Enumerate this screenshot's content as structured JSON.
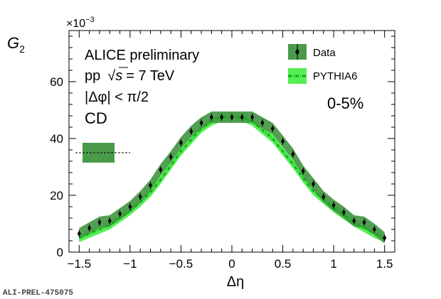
{
  "chart_data": {
    "type": "line",
    "title": "",
    "xlabel": "Δη",
    "ylabel": "G",
    "ylabel_sub": "2",
    "y_multiplier": "×10",
    "y_multiplier_exp": "−3",
    "xlim": [
      -1.6,
      1.6
    ],
    "ylim": [
      0,
      78
    ],
    "x_ticks": [
      -1.5,
      -1,
      -0.5,
      0,
      0.5,
      1,
      1.5
    ],
    "x_tick_labels": [
      "−1.5",
      "−1",
      "−0.5",
      "0",
      "0.5",
      "1",
      "1.5"
    ],
    "y_ticks": [
      0,
      20,
      40,
      60
    ],
    "y_tick_labels": [
      "0",
      "20",
      "40",
      "60"
    ],
    "annotations": [
      "ALICE preliminary",
      "pp",
      "s",
      "= 7 TeV",
      "|Δφ| < π/2",
      "CD",
      "0-5%"
    ],
    "legend_position": "top-right",
    "x": [
      -1.5,
      -1.4,
      -1.3,
      -1.2,
      -1.1,
      -1.0,
      -0.9,
      -0.8,
      -0.7,
      -0.6,
      -0.5,
      -0.4,
      -0.3,
      -0.2,
      -0.1,
      0.0,
      0.1,
      0.2,
      0.3,
      0.4,
      0.5,
      0.6,
      0.7,
      0.8,
      0.9,
      1.0,
      1.1,
      1.2,
      1.3,
      1.4,
      1.5
    ],
    "series": [
      {
        "name": "Data",
        "color": "#2e7d32",
        "band_color": "#4a9a4a",
        "values": [
          6.5,
          8.5,
          10.5,
          11.0,
          13.5,
          16.0,
          19.5,
          23.5,
          29.0,
          33.5,
          38.5,
          42.5,
          45.5,
          47.5,
          47.5,
          47.5,
          47.5,
          47.5,
          45.5,
          43.5,
          39.0,
          34.5,
          28.5,
          24.0,
          19.5,
          16.5,
          14.0,
          11.0,
          10.5,
          8.0,
          5.0
        ],
        "band_half_width": 2.0
      },
      {
        "name": "PYTHIA6",
        "color": "#11aa11",
        "band_color": "#55ee55",
        "values": [
          5.0,
          6.5,
          8.0,
          9.5,
          12.0,
          14.5,
          17.5,
          21.0,
          25.5,
          30.5,
          35.5,
          39.5,
          43.5,
          46.0,
          47.5,
          47.8,
          47.5,
          46.0,
          43.0,
          40.0,
          35.5,
          31.0,
          26.0,
          21.5,
          18.5,
          15.5,
          13.0,
          10.5,
          8.5,
          6.5,
          5.0
        ],
        "band_half_width": 1.5
      }
    ],
    "systematic_box": {
      "y": 35,
      "y_low": 31.5,
      "y_high": 38.5
    }
  },
  "footer": {
    "tag": "ALI-PREL-475075"
  }
}
